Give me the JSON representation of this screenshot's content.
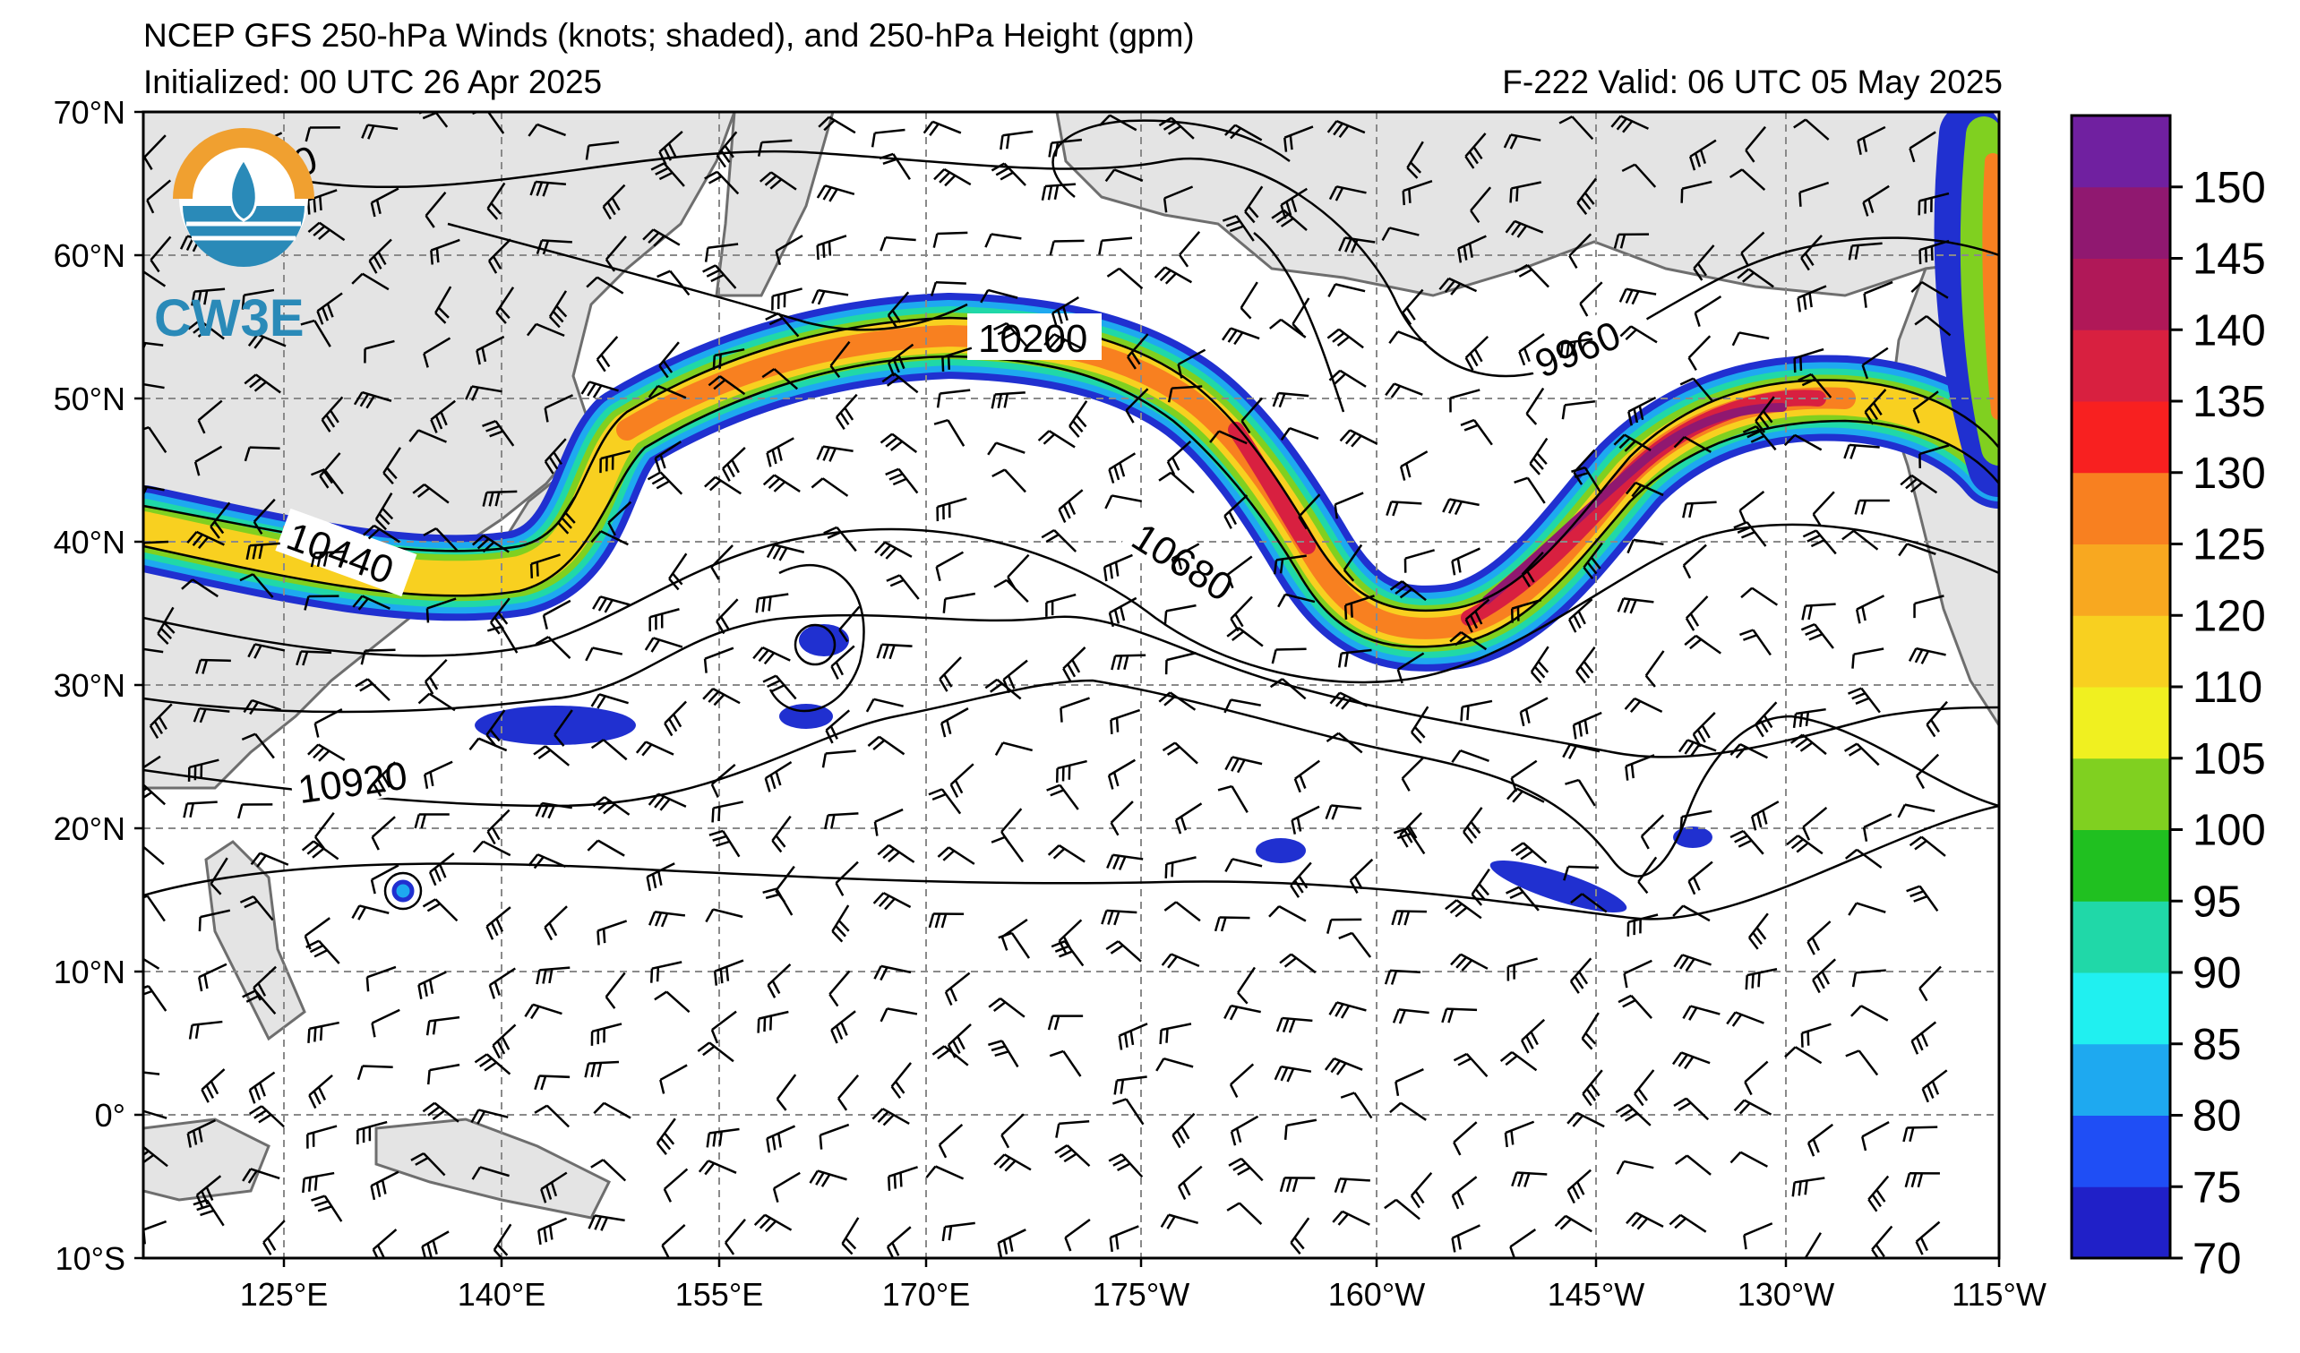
{
  "header": {
    "title": "NCEP GFS 250-hPa Winds (knots; shaded), and 250-hPa Height (gpm)",
    "initialized": "Initialized: 00 UTC 26 Apr 2025",
    "valid": "F-222  Valid: 06 UTC 05 May 2025"
  },
  "logo": {
    "text": "CW3E",
    "icon": "cw3e-logo-icon"
  },
  "axes": {
    "lat_labels": [
      "70°N",
      "60°N",
      "50°N",
      "40°N",
      "30°N",
      "20°N",
      "10°N",
      "0°",
      "10°S"
    ],
    "lon_labels": [
      "125°E",
      "140°E",
      "155°E",
      "170°E",
      "175°W",
      "160°W",
      "145°W",
      "130°W",
      "115°W"
    ]
  },
  "colorbar": {
    "ticks": [
      "70",
      "75",
      "80",
      "85",
      "90",
      "95",
      "100",
      "105",
      "110",
      "120",
      "125",
      "130",
      "135",
      "140",
      "145",
      "150"
    ],
    "colors": [
      "#2020c8",
      "#1f4ef5",
      "#1ea9f0",
      "#20f0f0",
      "#20d8a8",
      "#20c020",
      "#80d020",
      "#f0f020",
      "#f8d020",
      "#f8a820",
      "#f88020",
      "#f82020",
      "#d82040",
      "#b01858",
      "#901870",
      "#7020a0"
    ]
  },
  "contour_labels": [
    "9960",
    "10200",
    "9960",
    "10440",
    "10680",
    "10920"
  ]
}
